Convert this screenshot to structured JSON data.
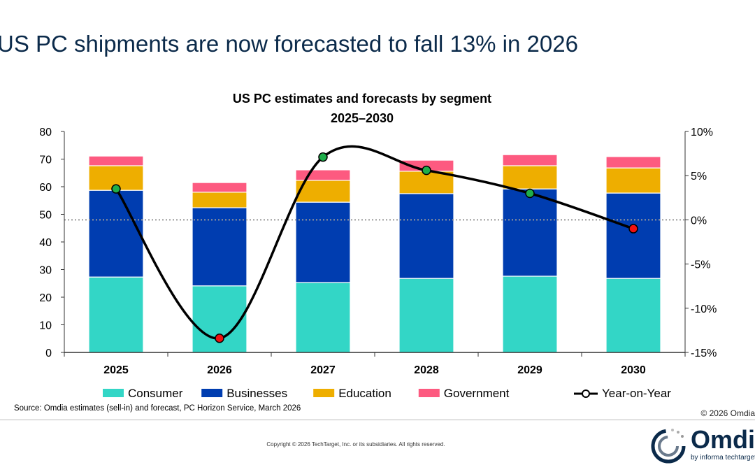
{
  "headline": "US PC shipments are now forecasted to fall 13% in 2026",
  "chart_data": {
    "type": "bar",
    "stacked": true,
    "title": "US PC estimates and forecasts by segment",
    "subtitle": "2025–2030",
    "categories": [
      "2025",
      "2026",
      "2027",
      "2028",
      "2029",
      "2030"
    ],
    "ylim": [
      0,
      80
    ],
    "yticks": [
      0,
      10,
      20,
      30,
      40,
      50,
      60,
      70,
      80
    ],
    "y2lim": [
      -15,
      10
    ],
    "y2ticks": [
      -15,
      -10,
      -5,
      0,
      5,
      10
    ],
    "y2tick_labels": [
      "-15%",
      "-10%",
      "-5%",
      "0%",
      "5%",
      "10%"
    ],
    "grid": false,
    "legend_placement": "bottom",
    "series": [
      {
        "name": "Consumer",
        "color": "#33d6c6",
        "values": [
          27.3,
          24.1,
          25.3,
          26.8,
          27.6,
          26.8
        ]
      },
      {
        "name": "Businesses",
        "color": "#003db0",
        "values": [
          31.4,
          28.3,
          29.1,
          30.7,
          31.6,
          30.9
        ]
      },
      {
        "name": "Education",
        "color": "#eeae00",
        "values": [
          8.9,
          5.6,
          7.9,
          8.1,
          8.4,
          9.1
        ]
      },
      {
        "name": "Government",
        "color": "#fd5a80",
        "values": [
          3.5,
          3.5,
          3.8,
          4.0,
          4.0,
          4.1
        ]
      }
    ],
    "line_series": {
      "name": "Year-on-Year",
      "axis": "right",
      "unit": "%",
      "values": [
        3.5,
        -13.4,
        7.1,
        5.6,
        3.0,
        -1.0
      ],
      "positive_color": "#1fae4b",
      "negative_color": "#f01010"
    }
  },
  "source": "Source: Omdia estimates (sell-in) and forecast, PC Horizon Service, March 2026",
  "copyright_omdia": "© 2026 Omdia",
  "legal": "Copyright © 2026 TechTarget, Inc. or its subsidiaries. All rights reserved.",
  "logo": {
    "word": "Omdia",
    "sub": "by informa techtarget"
  }
}
